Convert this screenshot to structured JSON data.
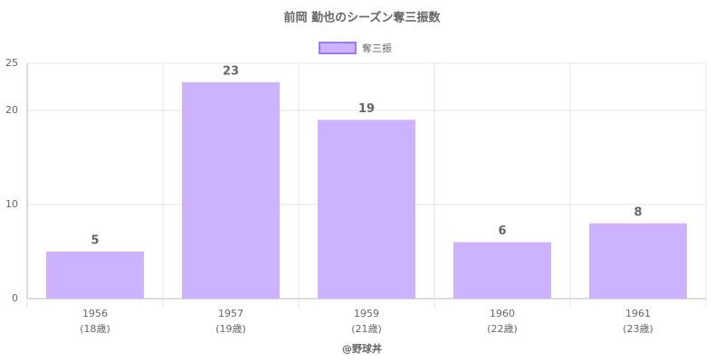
{
  "chart_data": {
    "type": "bar",
    "title": "前岡 勤也のシーズン奪三振数",
    "categories": [
      "1956",
      "1957",
      "1959",
      "1960",
      "1961"
    ],
    "category_sublabels": [
      "(18歳)",
      "(19歳)",
      "(21歳)",
      "(22歳)",
      "(23歳)"
    ],
    "series": [
      {
        "name": "奪三振",
        "color": "#cdb3ff",
        "border_color": "#9d7cf2",
        "values": [
          5,
          23,
          19,
          6,
          8
        ]
      }
    ],
    "ylim": [
      0,
      25
    ],
    "yticks": [
      0,
      10,
      20,
      25
    ],
    "grid": true,
    "x_label": "@野球丼"
  }
}
